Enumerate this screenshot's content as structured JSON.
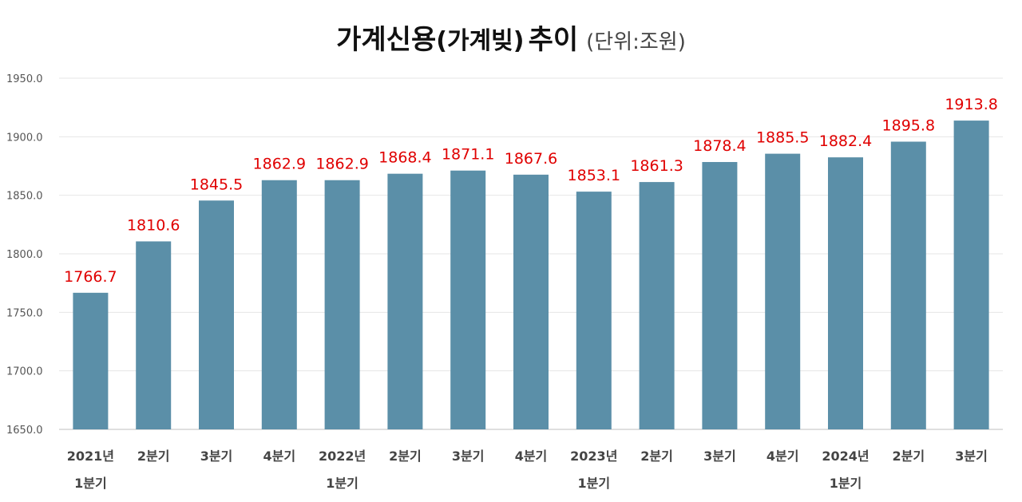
{
  "chart_data": {
    "type": "bar",
    "title": {
      "main": "가계신용",
      "paren": "(가계빚)",
      "suffix": "추이",
      "unit": "(단위:조원)"
    },
    "categories": [
      [
        "2021년",
        "1분기"
      ],
      [
        "2분기"
      ],
      [
        "3분기"
      ],
      [
        "4분기"
      ],
      [
        "2022년",
        "1분기"
      ],
      [
        "2분기"
      ],
      [
        "3분기"
      ],
      [
        "4분기"
      ],
      [
        "2023년",
        "1분기"
      ],
      [
        "2분기"
      ],
      [
        "3분기"
      ],
      [
        "4분기"
      ],
      [
        "2024년",
        "1분기"
      ],
      [
        "2분기"
      ],
      [
        "3분기"
      ]
    ],
    "values": [
      1766.7,
      1810.6,
      1845.5,
      1862.9,
      1862.9,
      1868.4,
      1871.1,
      1867.6,
      1853.1,
      1861.3,
      1878.4,
      1885.5,
      1882.4,
      1895.8,
      1913.8
    ],
    "ylim": [
      1650,
      1950
    ],
    "yticks": [
      "1650.0",
      "1700.0",
      "1750.0",
      "1800.0",
      "1850.0",
      "1900.0",
      "1950.0"
    ],
    "grid": true,
    "bar_color": "#5b8fa8",
    "label_color": "#e00000"
  }
}
